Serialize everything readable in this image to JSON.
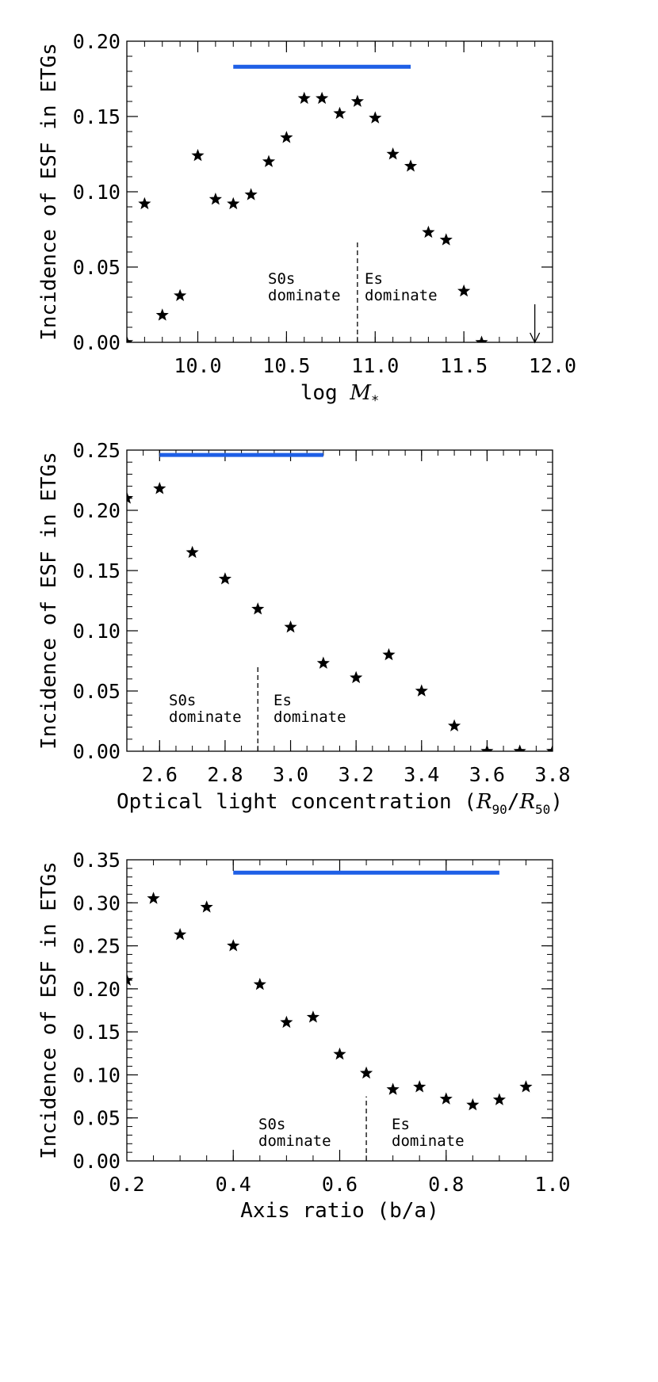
{
  "chart_data": [
    {
      "type": "scatter",
      "xlabel": "log M*",
      "ylabel": "Incidence of ESF in ETGs",
      "xlim": [
        9.6,
        12.0
      ],
      "ylim": [
        0.0,
        0.2
      ],
      "xticks": [
        "10.0",
        "10.5",
        "11.0",
        "11.5",
        "12.0"
      ],
      "yticks": [
        "0.00",
        "0.05",
        "0.10",
        "0.15",
        "0.20"
      ],
      "series": [
        {
          "marker": "star",
          "x": [
            9.6,
            9.7,
            9.8,
            9.9,
            10.0,
            10.1,
            10.2,
            10.3,
            10.4,
            10.5,
            10.6,
            10.7,
            10.8,
            10.9,
            11.0,
            11.1,
            11.2,
            11.3,
            11.4,
            11.5,
            11.6
          ],
          "y": [
            0.0,
            0.092,
            0.018,
            0.031,
            0.124,
            0.095,
            0.092,
            0.098,
            0.12,
            0.136,
            0.162,
            0.162,
            0.152,
            0.16,
            0.149,
            0.125,
            0.117,
            0.073,
            0.068,
            0.034,
            0.0
          ]
        }
      ],
      "range_bar": {
        "x": [
          10.2,
          11.2
        ],
        "y": 0.183,
        "color": "#1e5fe6"
      },
      "divider": {
        "x": 10.9,
        "y": [
          0.0,
          0.067
        ]
      },
      "upper_limit_arrow": {
        "x": 11.9,
        "y": [
          0.025,
          0.0
        ]
      },
      "annotations": [
        {
          "lines": [
            "S0s",
            "dominate"
          ],
          "side": "left"
        },
        {
          "lines": [
            "Es",
            "dominate"
          ],
          "side": "right"
        }
      ]
    },
    {
      "type": "scatter",
      "xlabel": "Optical light concentration (R90/R50)",
      "ylabel": "Incidence of ESF in ETGs",
      "xlim": [
        2.5,
        3.8
      ],
      "ylim": [
        0.0,
        0.25
      ],
      "xticks": [
        "2.6",
        "2.8",
        "3.0",
        "3.2",
        "3.4",
        "3.6",
        "3.8"
      ],
      "yticks": [
        "0.00",
        "0.05",
        "0.10",
        "0.15",
        "0.20",
        "0.25"
      ],
      "series": [
        {
          "marker": "star",
          "x": [
            2.5,
            2.6,
            2.7,
            2.8,
            2.9,
            3.0,
            3.1,
            3.2,
            3.3,
            3.4,
            3.5,
            3.6,
            3.7,
            3.8
          ],
          "y": [
            0.21,
            0.218,
            0.165,
            0.143,
            0.118,
            0.103,
            0.073,
            0.061,
            0.08,
            0.05,
            0.021,
            0.0,
            0.0,
            0.0
          ]
        }
      ],
      "range_bar": {
        "x": [
          2.6,
          3.1
        ],
        "y": 0.246,
        "color": "#1e5fe6"
      },
      "divider": {
        "x": 2.9,
        "y": [
          0.0,
          0.071
        ]
      },
      "annotations": [
        {
          "lines": [
            "S0s",
            "dominate"
          ],
          "side": "left"
        },
        {
          "lines": [
            "Es",
            "dominate"
          ],
          "side": "right"
        }
      ]
    },
    {
      "type": "scatter",
      "xlabel": "Axis ratio (b/a)",
      "ylabel": "Incidence of ESF in ETGs",
      "xlim": [
        0.2,
        1.0
      ],
      "ylim": [
        0.0,
        0.35
      ],
      "xticks": [
        "0.2",
        "0.4",
        "0.6",
        "0.8",
        "1.0"
      ],
      "yticks": [
        "0.00",
        "0.05",
        "0.10",
        "0.15",
        "0.20",
        "0.25",
        "0.30",
        "0.35"
      ],
      "series": [
        {
          "marker": "star",
          "x": [
            0.2,
            0.25,
            0.3,
            0.35,
            0.4,
            0.45,
            0.5,
            0.55,
            0.6,
            0.65,
            0.7,
            0.75,
            0.8,
            0.85,
            0.9,
            0.95
          ],
          "y": [
            0.21,
            0.305,
            0.263,
            0.295,
            0.25,
            0.205,
            0.161,
            0.167,
            0.124,
            0.102,
            0.083,
            0.086,
            0.072,
            0.065,
            0.071,
            0.086
          ]
        }
      ],
      "range_bar": {
        "x": [
          0.4,
          0.9
        ],
        "y": 0.335,
        "color": "#1e5fe6"
      },
      "divider": {
        "x": 0.65,
        "y": [
          0.0,
          0.075
        ]
      },
      "annotations": [
        {
          "lines": [
            "S0s",
            "dominate"
          ],
          "side": "left"
        },
        {
          "lines": [
            "Es",
            "dominate"
          ],
          "side": "right"
        }
      ]
    }
  ]
}
